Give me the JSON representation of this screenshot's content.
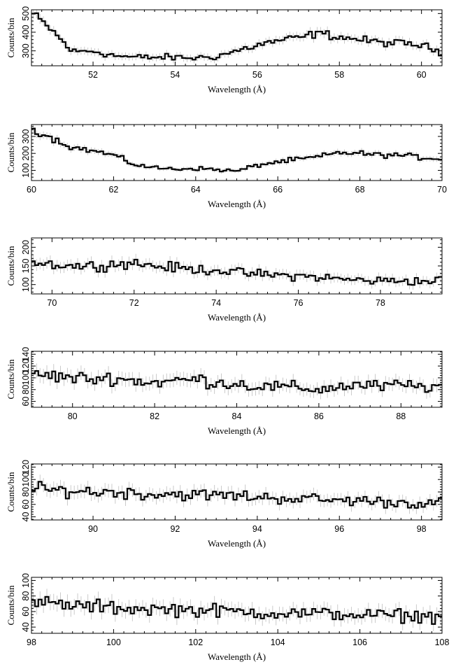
{
  "chart_data": [
    {
      "type": "line",
      "xlabel": "Wavelength (Å)",
      "ylabel": "Counts/bin",
      "xlim": [
        50.5,
        60.5
      ],
      "ylim": [
        220,
        520
      ],
      "xticks": [
        52,
        54,
        56,
        58,
        60
      ],
      "yticks": [
        300,
        400,
        500
      ],
      "grid": false,
      "series": [
        {
          "points": [
            [
              50.5,
              505
            ],
            [
              51.0,
              410
            ],
            [
              51.5,
              295
            ],
            [
              52.0,
              300
            ],
            [
              52.5,
              275
            ],
            [
              53.0,
              265
            ],
            [
              53.5,
              265
            ],
            [
              54.0,
              265
            ],
            [
              54.5,
              262
            ],
            [
              55.0,
              270
            ],
            [
              55.5,
              300
            ],
            [
              56.0,
              330
            ],
            [
              56.5,
              355
            ],
            [
              57.0,
              370
            ],
            [
              57.5,
              395
            ],
            [
              58.0,
              375
            ],
            [
              58.5,
              360
            ],
            [
              59.0,
              345
            ],
            [
              59.5,
              340
            ],
            [
              60.0,
              330
            ],
            [
              60.5,
              290
            ]
          ]
        }
      ]
    },
    {
      "type": "line",
      "xlabel": "Wavelength (Å)",
      "ylabel": "Counts/bin",
      "xlim": [
        60,
        70
      ],
      "ylim": [
        40,
        370
      ],
      "xticks": [
        60,
        62,
        64,
        66,
        68,
        70
      ],
      "yticks": [
        100,
        200,
        300
      ],
      "grid": false,
      "series": [
        {
          "points": [
            [
              60.0,
              345
            ],
            [
              60.5,
              290
            ],
            [
              61.0,
              235
            ],
            [
              61.5,
              215
            ],
            [
              62.0,
              190
            ],
            [
              62.5,
              135
            ],
            [
              63.0,
              115
            ],
            [
              63.5,
              108
            ],
            [
              64.0,
              112
            ],
            [
              64.5,
              105
            ],
            [
              65.0,
              95
            ],
            [
              65.5,
              130
            ],
            [
              66.0,
              150
            ],
            [
              66.5,
              165
            ],
            [
              67.0,
              180
            ],
            [
              67.5,
              205
            ],
            [
              68.0,
              200
            ],
            [
              68.5,
              190
            ],
            [
              69.0,
              190
            ],
            [
              69.5,
              175
            ],
            [
              70.0,
              170
            ]
          ]
        }
      ]
    },
    {
      "type": "line",
      "xlabel": "Wavelength (Å)",
      "ylabel": "Counts/bin",
      "xlim": [
        69.5,
        79.5
      ],
      "ylim": [
        75,
        225
      ],
      "xticks": [
        70,
        72,
        74,
        76,
        78
      ],
      "yticks": [
        100,
        150,
        200
      ],
      "grid": false,
      "series": [
        {
          "points": [
            [
              69.5,
              160
            ],
            [
              70.0,
              155
            ],
            [
              70.5,
              150
            ],
            [
              71.0,
              150
            ],
            [
              71.5,
              155
            ],
            [
              72.0,
              158
            ],
            [
              72.5,
              150
            ],
            [
              73.0,
              145
            ],
            [
              73.5,
              140
            ],
            [
              74.0,
              140
            ],
            [
              74.5,
              132
            ],
            [
              75.0,
              128
            ],
            [
              75.5,
              125
            ],
            [
              76.0,
              123
            ],
            [
              76.5,
              120
            ],
            [
              77.0,
              115
            ],
            [
              77.5,
              112
            ],
            [
              78.0,
              110
            ],
            [
              78.5,
              112
            ],
            [
              79.0,
              108
            ],
            [
              79.5,
              112
            ]
          ]
        }
      ]
    },
    {
      "type": "line",
      "xlabel": "Wavelength (Å)",
      "ylabel": "Counts/bin",
      "xlim": [
        79,
        89
      ],
      "ylim": [
        50,
        145
      ],
      "xticks": [
        80,
        82,
        84,
        86,
        88
      ],
      "yticks": [
        60,
        80,
        100,
        120,
        140
      ],
      "grid": false,
      "series": [
        {
          "points": [
            [
              79.0,
              108
            ],
            [
              79.5,
              103
            ],
            [
              80.0,
              100
            ],
            [
              80.5,
              98
            ],
            [
              81.0,
              100
            ],
            [
              81.5,
              95
            ],
            [
              82.0,
              92
            ],
            [
              82.5,
              95
            ],
            [
              83.0,
              98
            ],
            [
              83.5,
              92
            ],
            [
              84.0,
              90
            ],
            [
              84.5,
              85
            ],
            [
              85.0,
              85
            ],
            [
              85.5,
              83
            ],
            [
              86.0,
              80
            ],
            [
              86.5,
              85
            ],
            [
              87.0,
              88
            ],
            [
              87.5,
              85
            ],
            [
              88.0,
              88
            ],
            [
              88.5,
              85
            ],
            [
              89.0,
              85
            ]
          ]
        }
      ]
    },
    {
      "type": "line",
      "xlabel": "Wavelength (Å)",
      "ylabel": "Counts/bin",
      "xlim": [
        88.5,
        98.5
      ],
      "ylim": [
        35,
        125
      ],
      "xticks": [
        90,
        92,
        94,
        96,
        98
      ],
      "yticks": [
        40,
        60,
        80,
        100,
        120
      ],
      "grid": false,
      "series": [
        {
          "points": [
            [
              88.5,
              85
            ],
            [
              89.0,
              83
            ],
            [
              89.5,
              82
            ],
            [
              90.0,
              80
            ],
            [
              90.5,
              80
            ],
            [
              91.0,
              78
            ],
            [
              91.5,
              76
            ],
            [
              92.0,
              77
            ],
            [
              92.5,
              75
            ],
            [
              93.0,
              75
            ],
            [
              93.5,
              74
            ],
            [
              94.0,
              72
            ],
            [
              94.5,
              70
            ],
            [
              95.0,
              70
            ],
            [
              95.5,
              68
            ],
            [
              96.0,
              66
            ],
            [
              96.5,
              67
            ],
            [
              97.0,
              64
            ],
            [
              97.5,
              63
            ],
            [
              98.0,
              62
            ],
            [
              98.5,
              62
            ]
          ]
        }
      ]
    },
    {
      "type": "line",
      "xlabel": "Wavelength (Å)",
      "ylabel": "Counts/bin",
      "xlim": [
        98,
        108
      ],
      "ylim": [
        32,
        104
      ],
      "xticks": [
        98,
        100,
        102,
        104,
        106,
        108
      ],
      "yticks": [
        40,
        60,
        80,
        100
      ],
      "grid": false,
      "series": [
        {
          "points": [
            [
              98.0,
              72
            ],
            [
              98.5,
              70
            ],
            [
              99.0,
              68
            ],
            [
              99.5,
              66
            ],
            [
              100.0,
              65
            ],
            [
              100.5,
              64
            ],
            [
              101.0,
              63
            ],
            [
              101.5,
              63
            ],
            [
              102.0,
              62
            ],
            [
              102.5,
              61
            ],
            [
              103.0,
              60
            ],
            [
              103.5,
              59
            ],
            [
              104.0,
              58
            ],
            [
              104.5,
              58
            ],
            [
              105.0,
              57
            ],
            [
              105.5,
              57
            ],
            [
              106.0,
              56
            ],
            [
              106.5,
              55
            ],
            [
              107.0,
              55
            ],
            [
              107.5,
              54
            ],
            [
              108.0,
              54
            ]
          ]
        }
      ]
    }
  ]
}
